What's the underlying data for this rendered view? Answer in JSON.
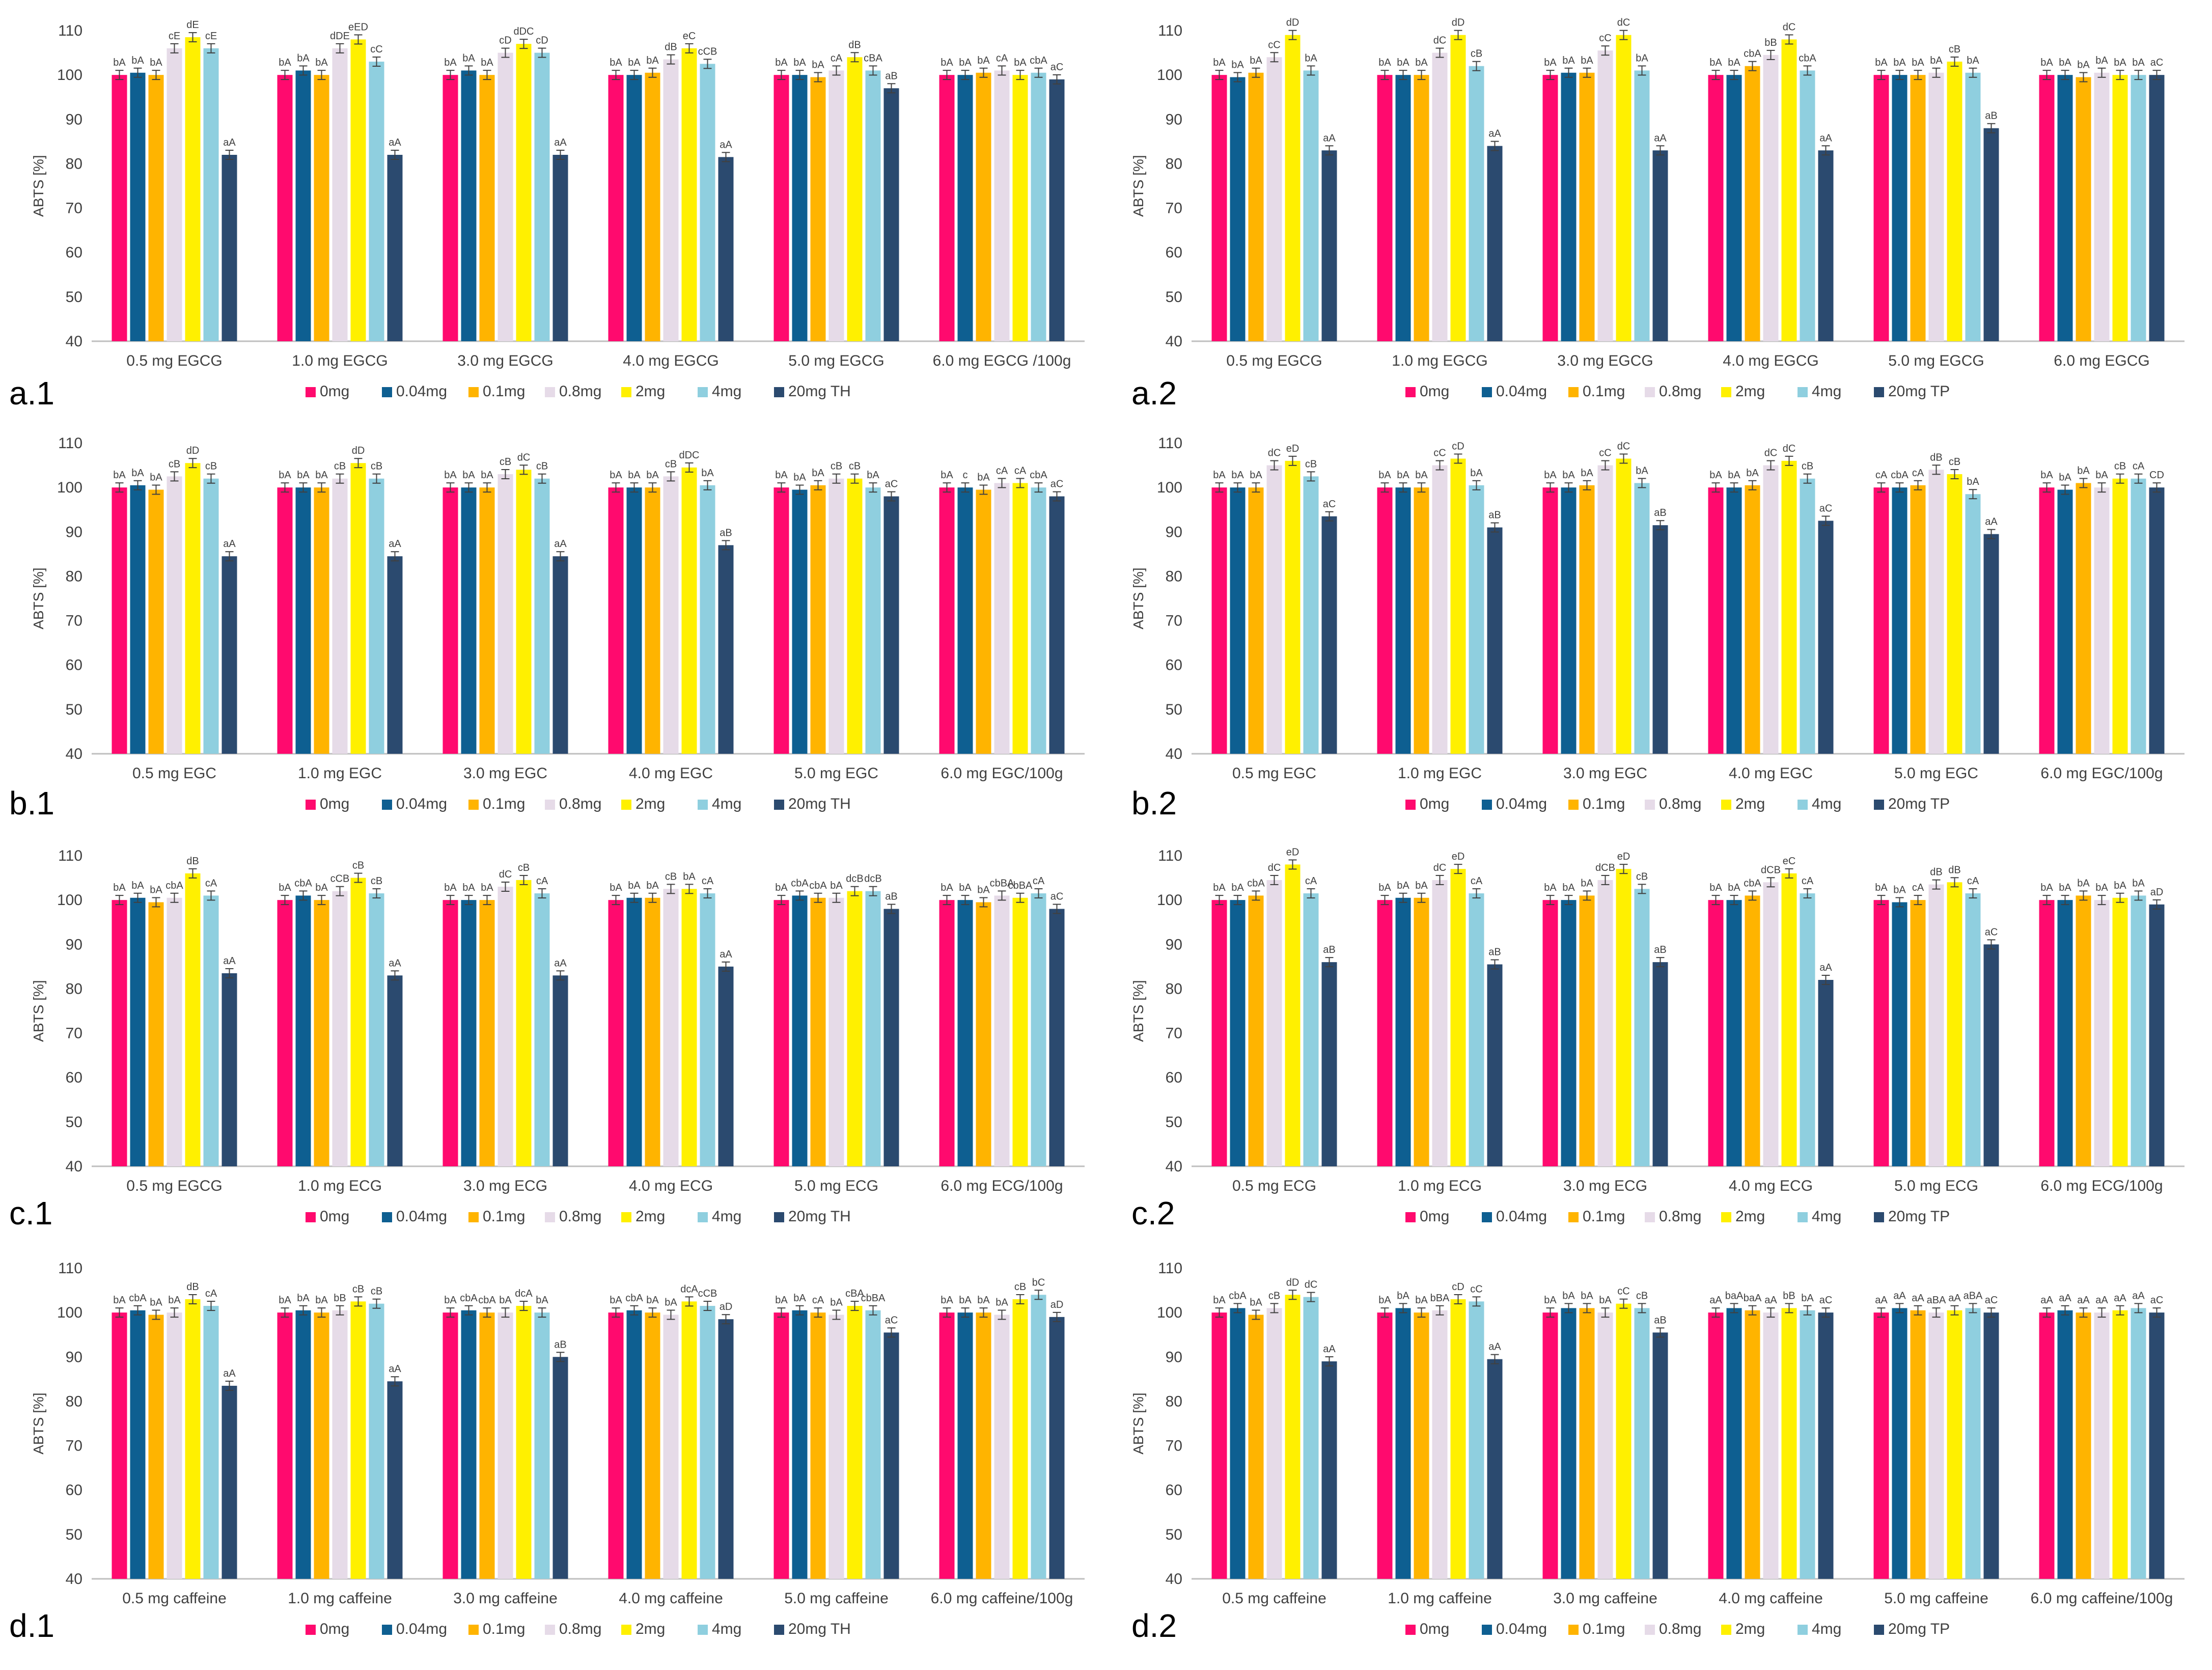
{
  "series_colors": [
    "#ff0a6e",
    "#0e5f91",
    "#ffb400",
    "#e6dbe8",
    "#fff000",
    "#8fcfdf",
    "#2b4a6f"
  ],
  "chart_data": [
    {
      "id": "a1",
      "panel_label": "a.1",
      "type": "bar",
      "ylabel": "ABTS [%]",
      "ylim": [
        40,
        110
      ],
      "yticks": [
        40,
        50,
        60,
        70,
        80,
        90,
        100,
        110
      ],
      "grid": false,
      "legend": "bottom",
      "series_names": [
        "0mg",
        "0.04mg",
        "0.1mg",
        "0.8mg",
        "2mg",
        "4mg",
        "20mg TH"
      ],
      "categories": [
        "0.5 mg EGCG",
        "1.0 mg EGCG",
        "3.0 mg EGCG",
        "4.0 mg EGCG",
        "5.0 mg EGCG",
        "6.0 mg EGCG /100g"
      ],
      "values": [
        [
          100,
          100.5,
          100,
          106,
          108.5,
          106,
          82
        ],
        [
          100,
          101,
          100,
          106,
          108,
          103,
          82
        ],
        [
          100,
          101,
          100,
          105,
          107,
          105,
          82
        ],
        [
          100,
          100,
          100.5,
          103.5,
          106,
          102.5,
          81.5
        ],
        [
          100,
          100,
          99.5,
          101,
          104,
          101,
          97
        ],
        [
          100,
          100,
          100.5,
          101,
          100,
          100.5,
          99
        ]
      ],
      "labels": [
        [
          "bA",
          "bA",
          "bA",
          "cE",
          "dE",
          "cE",
          "aA"
        ],
        [
          "bA",
          "bA",
          "bA",
          "dDE",
          "eED",
          "cC",
          "aA"
        ],
        [
          "bA",
          "bA",
          "bA",
          "cD",
          "dDC",
          "cD",
          "aA"
        ],
        [
          "bA",
          "bA",
          "bA",
          "dB",
          "eC",
          "cCB",
          "aA"
        ],
        [
          "bA",
          "bA",
          "bA",
          "cA",
          "dB",
          "cBA",
          "aB"
        ],
        [
          "bA",
          "bA",
          "bA",
          "cA",
          "bA",
          "cbA",
          "aC"
        ]
      ]
    },
    {
      "id": "a2",
      "panel_label": "a.2",
      "type": "bar",
      "ylabel": "ABTS [%]",
      "ylim": [
        40,
        110
      ],
      "yticks": [
        40,
        50,
        60,
        70,
        80,
        90,
        100,
        110
      ],
      "grid": false,
      "legend": "bottom",
      "series_names": [
        "0mg",
        "0.04mg",
        "0.1mg",
        "0.8mg",
        "2mg",
        "4mg",
        "20mg TP"
      ],
      "categories": [
        "0.5 mg EGCG",
        "1.0 mg EGCG",
        "3.0 mg EGCG",
        "4.0 mg EGCG",
        "5.0 mg EGCG",
        "6.0 mg EGCG"
      ],
      "values": [
        [
          100,
          99.5,
          100.5,
          104,
          109,
          101,
          83
        ],
        [
          100,
          100,
          100,
          105,
          109,
          102,
          84
        ],
        [
          100,
          100.5,
          100.5,
          105.5,
          109,
          101,
          83
        ],
        [
          100,
          100,
          102,
          104.5,
          108,
          101,
          83
        ],
        [
          100,
          100,
          100,
          100.5,
          103,
          100.5,
          88
        ],
        [
          100,
          100,
          99.5,
          100.5,
          100,
          100,
          100
        ]
      ],
      "labels": [
        [
          "bA",
          "bA",
          "bA",
          "cC",
          "dD",
          "bA",
          "aA"
        ],
        [
          "bA",
          "bA",
          "bA",
          "dC",
          "dD",
          "cB",
          "aA"
        ],
        [
          "bA",
          "bA",
          "bA",
          "cC",
          "dC",
          "bA",
          "aA"
        ],
        [
          "bA",
          "bA",
          "cbA",
          "bB",
          "dC",
          "cbA",
          "aA"
        ],
        [
          "bA",
          "bA",
          "bA",
          "bA",
          "cB",
          "bA",
          "aB"
        ],
        [
          "bA",
          "bA",
          "bA",
          "bA",
          "bA",
          "bA",
          "aC"
        ]
      ]
    },
    {
      "id": "b1",
      "panel_label": "b.1",
      "type": "bar",
      "ylabel": "ABTS [%]",
      "ylim": [
        40,
        110
      ],
      "yticks": [
        40,
        50,
        60,
        70,
        80,
        90,
        100,
        110
      ],
      "grid": false,
      "legend": "bottom",
      "series_names": [
        "0mg",
        "0.04mg",
        "0.1mg",
        "0.8mg",
        "2mg",
        "4mg",
        "20mg TH"
      ],
      "categories": [
        "0.5 mg EGC",
        "1.0 mg EGC",
        "3.0 mg EGC",
        "4.0 mg EGC",
        "5.0 mg EGC",
        "6.0 mg EGC/100g"
      ],
      "values": [
        [
          100,
          100.5,
          99.5,
          102.5,
          105.5,
          102,
          84.5
        ],
        [
          100,
          100,
          100,
          102,
          105.5,
          102,
          84.5
        ],
        [
          100,
          100,
          100,
          103,
          104,
          102,
          84.5
        ],
        [
          100,
          100,
          100,
          102.5,
          104.5,
          100.5,
          87
        ],
        [
          100,
          99.5,
          100.5,
          102,
          102,
          100,
          98
        ],
        [
          100,
          100,
          99.5,
          101,
          101,
          100,
          98
        ]
      ],
      "labels": [
        [
          "bA",
          "bA",
          "bA",
          "cB",
          "dD",
          "cB",
          "aA"
        ],
        [
          "bA",
          "bA",
          "bA",
          "cB",
          "dD",
          "cB",
          "aA"
        ],
        [
          "bA",
          "bA",
          "bA",
          "cB",
          "dC",
          "cB",
          "aA"
        ],
        [
          "bA",
          "bA",
          "bA",
          "cB",
          "dDC",
          "bA",
          "aB"
        ],
        [
          "bA",
          "bA",
          "bA",
          "cB",
          "cB",
          "bA",
          "aC"
        ],
        [
          "bA",
          "c",
          "bA",
          "cA",
          "cA",
          "cbA",
          "aC"
        ]
      ]
    },
    {
      "id": "b2",
      "panel_label": "b.2",
      "type": "bar",
      "ylabel": "ABTS [%]",
      "ylim": [
        40,
        110
      ],
      "yticks": [
        40,
        50,
        60,
        70,
        80,
        90,
        100,
        110
      ],
      "grid": false,
      "legend": "bottom",
      "series_names": [
        "0mg",
        "0.04mg",
        "0.1mg",
        "0.8mg",
        "2mg",
        "4mg",
        "20mg TP"
      ],
      "categories": [
        "0.5 mg EGC",
        "1.0 mg EGC",
        "3.0 mg EGC",
        "4.0 mg EGC",
        "5.0 mg EGC",
        "6.0 mg EGC/100g"
      ],
      "values": [
        [
          100,
          100,
          100,
          105,
          106,
          102.5,
          93.5
        ],
        [
          100,
          100,
          100,
          105,
          106.5,
          100.5,
          91
        ],
        [
          100,
          100,
          100.5,
          105,
          106.5,
          101,
          91.5
        ],
        [
          100,
          100,
          100.5,
          105,
          106,
          102,
          92.5
        ],
        [
          100,
          100,
          100.5,
          104,
          103,
          98.5,
          89.5
        ],
        [
          100,
          99.5,
          101,
          100,
          102,
          102,
          100
        ]
      ],
      "labels": [
        [
          "bA",
          "bA",
          "bA",
          "dC",
          "eD",
          "cB",
          "aC"
        ],
        [
          "bA",
          "bA",
          "bA",
          "cC",
          "cD",
          "bA",
          "aB"
        ],
        [
          "bA",
          "bA",
          "bA",
          "cC",
          "dC",
          "bA",
          "aB"
        ],
        [
          "bA",
          "bA",
          "bA",
          "dC",
          "dC",
          "cB",
          "aC"
        ],
        [
          "cA",
          "cbA",
          "cA",
          "dB",
          "cB",
          "bA",
          "aA"
        ],
        [
          "bA",
          "bA",
          "bA",
          "bA",
          "cB",
          "cA",
          "CD"
        ]
      ]
    },
    {
      "id": "c1",
      "panel_label": "c.1",
      "type": "bar",
      "ylabel": "ABTS [%]",
      "ylim": [
        40,
        110
      ],
      "yticks": [
        40,
        50,
        60,
        70,
        80,
        90,
        100,
        110
      ],
      "grid": false,
      "legend": "bottom",
      "series_names": [
        "0mg",
        "0.04mg",
        "0.1mg",
        "0.8mg",
        "2mg",
        "4mg",
        "20mg TH"
      ],
      "categories": [
        "0.5 mg EGCG",
        "1.0 mg ECG",
        "3.0 mg ECG",
        "4.0 mg ECG",
        "5.0 mg ECG",
        "6.0 mg ECG/100g"
      ],
      "values": [
        [
          100,
          100.5,
          99.5,
          100.5,
          106,
          101,
          83.5
        ],
        [
          100,
          101,
          100,
          102,
          105,
          101.5,
          83
        ],
        [
          100,
          100,
          100,
          103,
          104.5,
          101.5,
          83
        ],
        [
          100,
          100.5,
          100.5,
          102.5,
          102.5,
          101.5,
          85
        ],
        [
          100,
          101,
          100.5,
          100.5,
          102,
          102,
          98
        ],
        [
          100,
          100,
          99.5,
          101,
          100.5,
          101.5,
          98
        ]
      ],
      "labels": [
        [
          "bA",
          "bA",
          "bA",
          "cbA",
          "dB",
          "cA",
          "aA"
        ],
        [
          "bA",
          "cbA",
          "bA",
          "cCB",
          "cB",
          "cB",
          "aA"
        ],
        [
          "bA",
          "bA",
          "bA",
          "dC",
          "cB",
          "cA",
          "aA"
        ],
        [
          "bA",
          "bA",
          "bA",
          "cB",
          "bA",
          "cA",
          "aA"
        ],
        [
          "bA",
          "cbA",
          "cbA",
          "bA",
          "dcB",
          "dcB",
          "aB"
        ],
        [
          "bA",
          "bA",
          "bA",
          "cbBA",
          "cbBA",
          "cA",
          "aC"
        ]
      ]
    },
    {
      "id": "c2",
      "panel_label": "c.2",
      "type": "bar",
      "ylabel": "ABTS [%]",
      "ylim": [
        40,
        110
      ],
      "yticks": [
        40,
        50,
        60,
        70,
        80,
        90,
        100,
        110
      ],
      "grid": false,
      "legend": "bottom",
      "series_names": [
        "0mg",
        "0.04mg",
        "0.1mg",
        "0.8mg",
        "2mg",
        "4mg",
        "20mg TP"
      ],
      "categories": [
        "0.5 mg ECG",
        "1.0 mg ECG",
        "3.0 mg ECG",
        "4.0 mg ECG",
        "5.0 mg ECG",
        "6.0 mg ECG/100g"
      ],
      "values": [
        [
          100,
          100,
          101,
          104.5,
          108,
          101.5,
          86
        ],
        [
          100,
          100.5,
          100.5,
          104.5,
          107,
          101.5,
          85.5
        ],
        [
          100,
          100,
          101,
          104.5,
          107,
          102.5,
          86
        ],
        [
          100,
          100,
          101,
          104,
          106,
          101.5,
          82
        ],
        [
          100,
          99.5,
          100,
          103.5,
          104,
          101.5,
          90
        ],
        [
          100,
          100,
          101,
          100,
          100.5,
          101,
          99
        ]
      ],
      "labels": [
        [
          "bA",
          "bA",
          "cbA",
          "dC",
          "eD",
          "cA",
          "aB"
        ],
        [
          "bA",
          "bA",
          "bA",
          "dC",
          "eD",
          "cA",
          "aB"
        ],
        [
          "bA",
          "bA",
          "bA",
          "dCB",
          "eD",
          "cB",
          "aB"
        ],
        [
          "bA",
          "bA",
          "cbA",
          "dCB",
          "eC",
          "cA",
          "aA"
        ],
        [
          "bA",
          "bA",
          "cA",
          "dB",
          "dB",
          "cA",
          "aC"
        ],
        [
          "bA",
          "bA",
          "bA",
          "bA",
          "bA",
          "bA",
          "aD"
        ]
      ]
    },
    {
      "id": "d1",
      "panel_label": "d.1",
      "type": "bar",
      "ylabel": "ABTS [%]",
      "ylim": [
        40,
        110
      ],
      "yticks": [
        40,
        50,
        60,
        70,
        80,
        90,
        100,
        110
      ],
      "grid": false,
      "legend": "bottom",
      "series_names": [
        "0mg",
        "0.04mg",
        "0.1mg",
        "0.8mg",
        "2mg",
        "4mg",
        "20mg TH"
      ],
      "categories": [
        "0.5 mg caffeine",
        "1.0 mg caffeine",
        "3.0 mg caffeine",
        "4.0 mg caffeine",
        "5.0 mg caffeine",
        "6.0 mg caffeine/100g"
      ],
      "values": [
        [
          100,
          100.5,
          99.5,
          100,
          103,
          101.5,
          83.5
        ],
        [
          100,
          100.5,
          100,
          100.5,
          102.5,
          102,
          84.5
        ],
        [
          100,
          100.5,
          100,
          100,
          101.5,
          100,
          90
        ],
        [
          100,
          100.5,
          100,
          99.5,
          102.5,
          101.5,
          98.5
        ],
        [
          100,
          100.5,
          100,
          99.5,
          101.5,
          100.5,
          95.5
        ],
        [
          100,
          100,
          100,
          99.5,
          103,
          104,
          99
        ]
      ],
      "labels": [
        [
          "bA",
          "cbA",
          "bA",
          "bA",
          "dB",
          "cA",
          "aA"
        ],
        [
          "bA",
          "bA",
          "bA",
          "bB",
          "cB",
          "cB",
          "aA"
        ],
        [
          "bA",
          "cbA",
          "cbA",
          "bA",
          "dcA",
          "bA",
          "aB"
        ],
        [
          "bA",
          "cbA",
          "bA",
          "bA",
          "dcA",
          "cCB",
          "aD"
        ],
        [
          "bA",
          "bA",
          "cA",
          "bA",
          "cBA",
          "cbBA",
          "aC"
        ],
        [
          "bA",
          "bA",
          "bA",
          "bA",
          "cB",
          "bC",
          "aD"
        ]
      ]
    },
    {
      "id": "d2",
      "panel_label": "d.2",
      "type": "bar",
      "ylabel": "ABTS [%]",
      "ylim": [
        40,
        110
      ],
      "yticks": [
        40,
        50,
        60,
        70,
        80,
        90,
        100,
        110
      ],
      "grid": false,
      "legend": "bottom",
      "series_names": [
        "0mg",
        "0.04mg",
        "0.1mg",
        "0.8mg",
        "2mg",
        "4mg",
        "20mg TP"
      ],
      "categories": [
        "0.5 mg caffeine",
        "1.0 mg caffeine",
        "3.0 mg caffeine",
        "4.0 mg caffeine",
        "5.0 mg caffeine",
        "6.0 mg caffeine/100g"
      ],
      "values": [
        [
          100,
          101,
          99.5,
          101,
          104,
          103.5,
          89
        ],
        [
          100,
          101,
          100,
          100.5,
          103,
          102.5,
          89.5
        ],
        [
          100,
          101,
          101,
          100,
          102,
          101,
          95.5
        ],
        [
          100,
          101,
          100.5,
          100,
          101,
          100.5,
          100
        ],
        [
          100,
          101,
          100.5,
          100,
          100.5,
          101,
          100
        ],
        [
          100,
          100.5,
          100,
          100,
          100.5,
          101,
          100
        ]
      ],
      "labels": [
        [
          "bA",
          "cbA",
          "bA",
          "cB",
          "dD",
          "dC",
          "aA"
        ],
        [
          "bA",
          "bA",
          "bA",
          "bBA",
          "cD",
          "cC",
          "aA"
        ],
        [
          "bA",
          "bA",
          "bA",
          "bA",
          "cC",
          "cB",
          "aB"
        ],
        [
          "aA",
          "baA",
          "baA",
          "aA",
          "bB",
          "bA",
          "aC"
        ],
        [
          "aA",
          "aA",
          "aA",
          "aBA",
          "aA",
          "aBA",
          "aC"
        ],
        [
          "aA",
          "aA",
          "aA",
          "aA",
          "aA",
          "aA",
          "aC"
        ]
      ]
    }
  ]
}
